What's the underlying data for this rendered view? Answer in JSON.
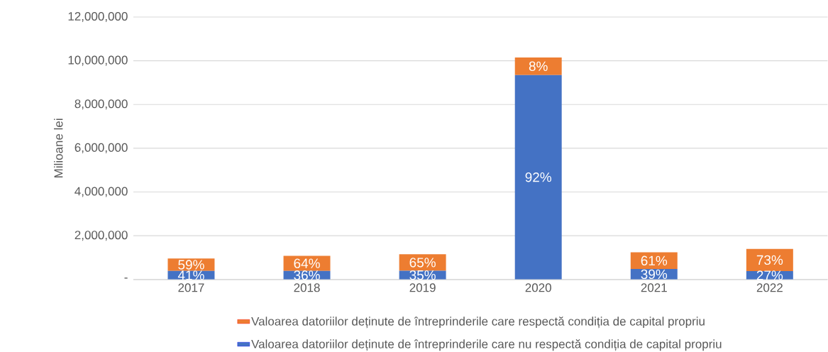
{
  "chart_data": {
    "type": "bar",
    "stacked": true,
    "ylabel": "Milioane lei",
    "categories": [
      "2017",
      "2018",
      "2019",
      "2020",
      "2021",
      "2022"
    ],
    "series": [
      {
        "name": "Valoarea datoriilor deținute de întreprinderile care nu respectă condiția de capital propriu",
        "color": "#4472c4",
        "values": [
          390000,
          390000,
          400000,
          9350000,
          480000,
          380000
        ]
      },
      {
        "name": "Valoarea datoriilor deținute de întreprinderile care respectă condiția de capital propriu",
        "color": "#ed7d31",
        "values": [
          570000,
          690000,
          750000,
          800000,
          760000,
          1020000
        ]
      }
    ],
    "annotations": [
      "41%",
      "36%",
      "35%",
      "92%",
      "39%",
      "27%",
      "59%",
      "64%",
      "65%",
      "8%",
      "61%",
      "73%"
    ],
    "ylim": [
      0,
      12000000
    ],
    "yticks": [
      {
        "value": 0,
        "label": "-"
      },
      {
        "value": 2000000,
        "label": "2,000,000"
      },
      {
        "value": 4000000,
        "label": "4,000,000"
      },
      {
        "value": 6000000,
        "label": "6,000,000"
      },
      {
        "value": 8000000,
        "label": "8,000,000"
      },
      {
        "value": 10000000,
        "label": "10,000,000"
      },
      {
        "value": 12000000,
        "label": "12,000,000"
      }
    ],
    "grid": "y",
    "legend": "bottom"
  }
}
